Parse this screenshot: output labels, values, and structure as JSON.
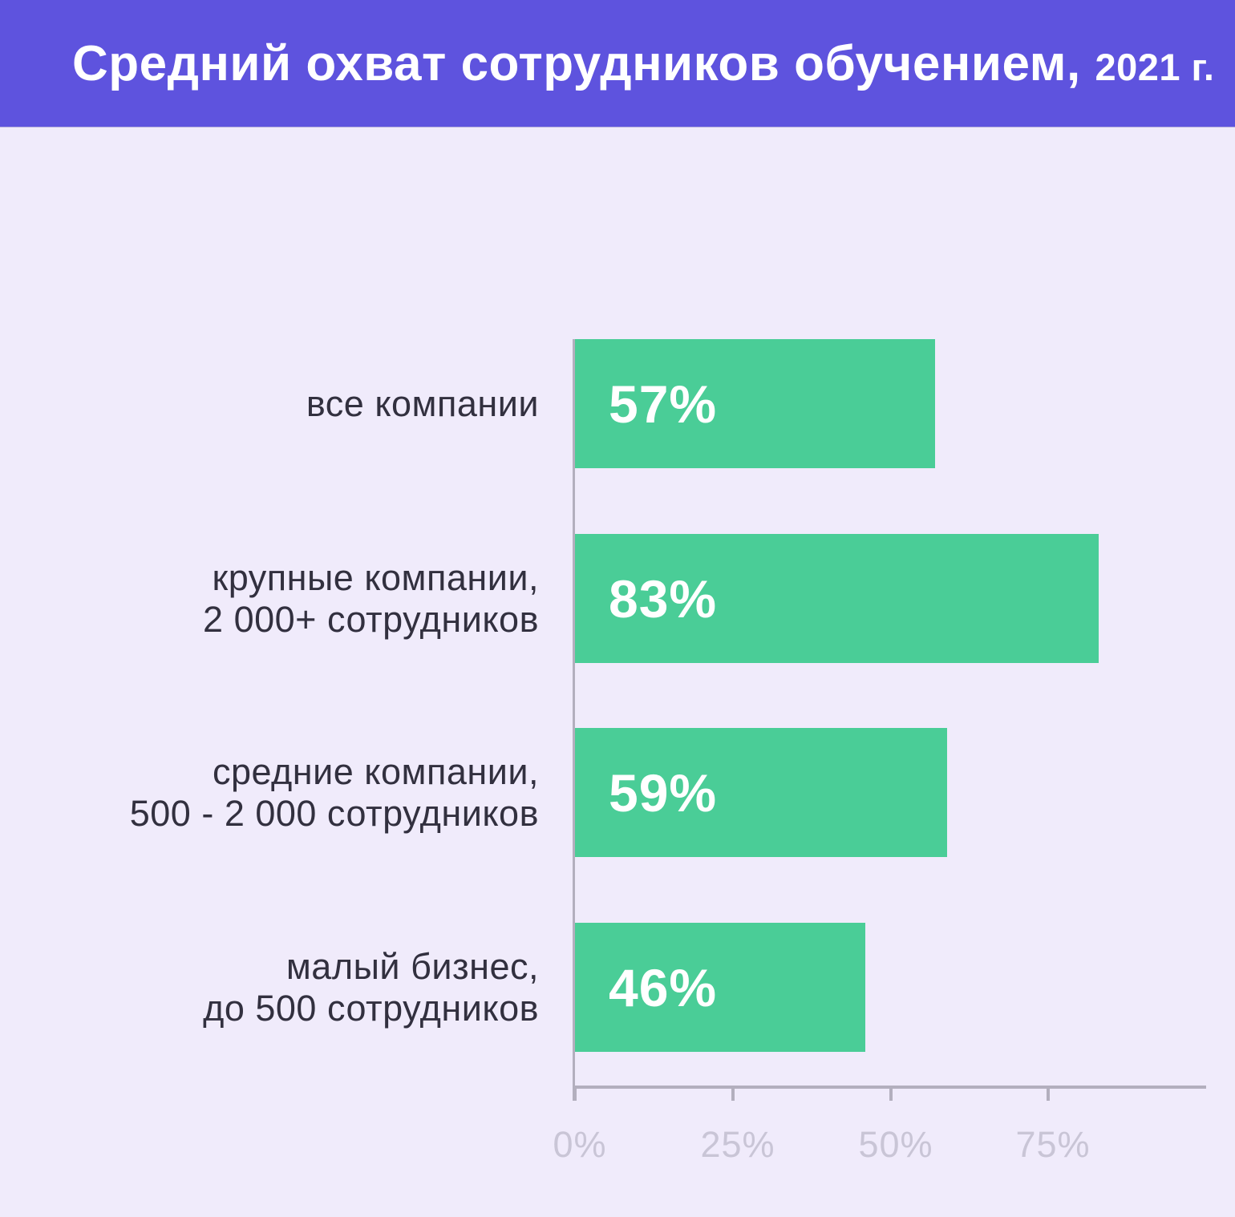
{
  "header": {
    "title_main": "Средний охват сотрудников обучением,",
    "title_year": "2021 г.",
    "bg_color": "#5E53DE",
    "text_color": "#FFFFFF"
  },
  "chart_data": {
    "type": "bar",
    "orientation": "horizontal",
    "title": "Средний охват сотрудников обучением, 2021 г.",
    "categories": [
      [
        "все компании"
      ],
      [
        "крупные компании,",
        "2 000+ сотрудников"
      ],
      [
        "средние компании,",
        "500 - 2 000 сотрудников"
      ],
      [
        "малый бизнес,",
        "до 500 сотрудников"
      ]
    ],
    "values": [
      57,
      83,
      59,
      46
    ],
    "value_labels": [
      "57%",
      "83%",
      "59%",
      "46%"
    ],
    "xlabel": "",
    "ylabel": "",
    "xlim": [
      0,
      100
    ],
    "x_ticks": [
      {
        "value": 0,
        "label": "0%"
      },
      {
        "value": 25,
        "label": "25%"
      },
      {
        "value": 50,
        "label": "50%"
      },
      {
        "value": 75,
        "label": "75%"
      }
    ],
    "grid": false,
    "legend": false,
    "bar_color": "#4ACD97",
    "value_label_color": "#FFFFFF",
    "category_label_color": "#32303F",
    "axis_color": "#B3AFBE",
    "tick_label_color": "#C9C5D6",
    "background_color": "#F0EBFB"
  }
}
